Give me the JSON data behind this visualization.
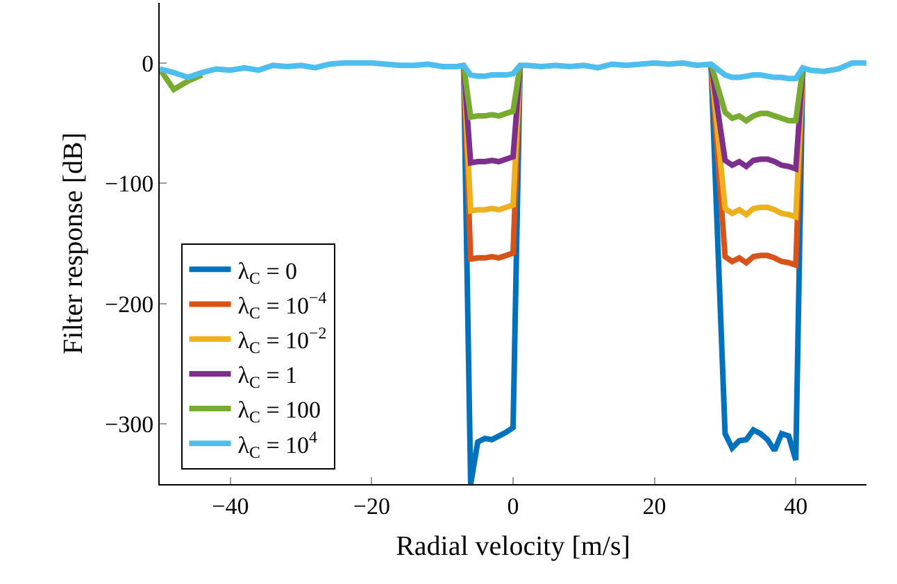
{
  "chart_data": {
    "type": "line",
    "xlabel": "Radial velocity [m/s]",
    "ylabel": "Filter response [dB]",
    "x": [
      -50,
      -48,
      -46,
      -44,
      -42,
      -40,
      -38,
      -36,
      -34,
      -32,
      -30,
      -28,
      -26,
      -24,
      -22,
      -20,
      -18,
      -16,
      -14,
      -12,
      -10,
      -8,
      -7,
      -6,
      -5,
      -4,
      -3,
      -2,
      -1,
      0,
      1,
      2,
      4,
      6,
      8,
      10,
      12,
      14,
      16,
      18,
      20,
      22,
      24,
      26,
      28,
      30,
      31,
      32,
      33,
      34,
      35,
      36,
      37,
      38,
      39,
      40,
      41,
      42,
      44,
      46,
      48,
      50
    ],
    "series": [
      {
        "name": "λ$_{C}$ = 0",
        "color": "#0072bd",
        "values": [
          null,
          null,
          null,
          null,
          null,
          null,
          null,
          null,
          null,
          null,
          null,
          null,
          null,
          null,
          null,
          null,
          null,
          null,
          null,
          null,
          null,
          null,
          -2,
          -350,
          -315,
          -312,
          -313,
          -310,
          -307,
          -303,
          -2,
          null,
          null,
          null,
          null,
          null,
          null,
          null,
          null,
          null,
          null,
          null,
          null,
          null,
          -1,
          -308,
          -320,
          -314,
          -313,
          -305,
          -308,
          -313,
          -322,
          -308,
          -310,
          -330,
          -4,
          null,
          null,
          null,
          null,
          null
        ]
      },
      {
        "name": "λ$_{C}$ = 10$^{−4}$",
        "color": "#d95319",
        "values": [
          null,
          null,
          null,
          null,
          null,
          null,
          null,
          null,
          null,
          null,
          null,
          null,
          null,
          null,
          null,
          null,
          null,
          null,
          null,
          null,
          null,
          null,
          -2,
          -163,
          -162,
          -162,
          -161,
          -162,
          -160,
          -158,
          -2,
          null,
          null,
          null,
          null,
          null,
          null,
          null,
          null,
          null,
          null,
          null,
          null,
          null,
          -1,
          -161,
          -165,
          -162,
          -166,
          -161,
          -160,
          -160,
          -162,
          -165,
          -166,
          -168,
          -4,
          null,
          null,
          null,
          null,
          null
        ]
      },
      {
        "name": "λ$_{C}$ = 10$^{−2}$",
        "color": "#edb120",
        "values": [
          null,
          null,
          null,
          null,
          null,
          null,
          null,
          null,
          null,
          null,
          null,
          null,
          null,
          null,
          null,
          null,
          null,
          null,
          null,
          null,
          null,
          null,
          -2,
          -123,
          -122,
          -122,
          -121,
          -122,
          -120,
          -118,
          -2,
          null,
          null,
          null,
          null,
          null,
          null,
          null,
          null,
          null,
          null,
          null,
          null,
          null,
          -1,
          -121,
          -125,
          -122,
          -126,
          -121,
          -120,
          -120,
          -122,
          -125,
          -126,
          -128,
          -4,
          null,
          null,
          null,
          null,
          null
        ]
      },
      {
        "name": "λ$_{C}$ = 1",
        "color": "#7e2f8e",
        "values": [
          null,
          null,
          null,
          null,
          null,
          null,
          null,
          null,
          null,
          null,
          null,
          null,
          null,
          null,
          null,
          null,
          null,
          null,
          null,
          null,
          null,
          null,
          -2,
          -83,
          -82,
          -82,
          -81,
          -82,
          -80,
          -78,
          -2,
          null,
          null,
          null,
          null,
          null,
          null,
          null,
          null,
          null,
          null,
          null,
          null,
          null,
          -1,
          -81,
          -85,
          -82,
          -86,
          -81,
          -80,
          -80,
          -82,
          -85,
          -86,
          -88,
          -4,
          null,
          null,
          null,
          null,
          null
        ]
      },
      {
        "name": "λ$_{C}$ = 100",
        "color": "#77ac30",
        "values": [
          -5,
          -22,
          -15,
          -10,
          null,
          null,
          null,
          null,
          null,
          null,
          null,
          null,
          null,
          null,
          null,
          null,
          null,
          null,
          null,
          null,
          null,
          null,
          -2,
          -45,
          -44,
          -44,
          -43,
          -44,
          -42,
          -40,
          -2,
          null,
          null,
          null,
          null,
          null,
          null,
          null,
          null,
          null,
          null,
          null,
          null,
          null,
          -1,
          -41,
          -46,
          -44,
          -48,
          -44,
          -42,
          -42,
          -44,
          -46,
          -48,
          -48,
          -4,
          null,
          null,
          null,
          null,
          null
        ]
      },
      {
        "name": "λ$_{C}$ = 10$^{4}$",
        "color": "#4dbeee",
        "values": [
          -5,
          -8,
          -12,
          -8,
          -5,
          -6,
          -4,
          -6,
          -2,
          -3,
          -2,
          -4,
          -1,
          0,
          0,
          0,
          -1,
          -2,
          -2,
          -1,
          -3,
          -3,
          -2,
          -10,
          -11,
          -11,
          -10,
          -10,
          -10,
          -9,
          -2,
          -2,
          -3,
          -2,
          -3,
          -2,
          -4,
          -1,
          -2,
          -1,
          0,
          -1,
          0,
          -2,
          -1,
          -10,
          -12,
          -12,
          -11,
          -10,
          -10,
          -11,
          -12,
          -12,
          -13,
          -13,
          -4,
          -6,
          -7,
          -5,
          0,
          0
        ]
      }
    ],
    "xlim": [
      -50,
      50
    ],
    "ylim": [
      -350,
      50
    ],
    "xticks": [
      {
        "value": -40,
        "label": "−40"
      },
      {
        "value": -20,
        "label": "−20"
      },
      0,
      20,
      40
    ],
    "yticks": [
      {
        "value": -300,
        "label": "−300"
      },
      {
        "value": -200,
        "label": "−200"
      },
      {
        "value": -100,
        "label": "−100"
      },
      0
    ],
    "grid": false,
    "legend": "bottom left",
    "marker": "none",
    "line_style": "solid"
  }
}
